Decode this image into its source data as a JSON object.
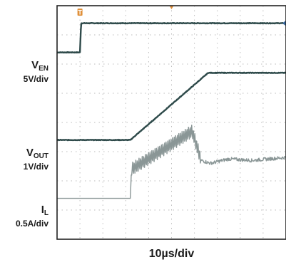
{
  "chart_data": {
    "type": "line",
    "title": "",
    "xlabel": "10µs/div",
    "grid": true,
    "x_divisions": 10,
    "y_divisions": 8,
    "colors": {
      "trace": "#2e4a4a",
      "current_trace": "#8a9696",
      "grid": "#bdbdbd",
      "marker": "#e0903a"
    },
    "channels": [
      {
        "id": "en",
        "label": "V",
        "sub": "EN",
        "scale": "5V/div",
        "zero_div": 1.6,
        "color": "#2e4a4a",
        "points": [
          [
            0,
            0
          ],
          [
            1,
            0
          ],
          [
            1.05,
            1.0
          ],
          [
            10,
            1.0
          ]
        ]
      },
      {
        "id": "vout",
        "label": "V",
        "sub": "OUT",
        "scale": "1V/div",
        "zero_div": 4.6,
        "color": "#2e4a4a",
        "points": [
          [
            0,
            0
          ],
          [
            3.2,
            0
          ],
          [
            6.6,
            2.3
          ],
          [
            10,
            2.3
          ]
        ]
      },
      {
        "id": "il",
        "label": "I",
        "sub": "L",
        "scale": "0.5A/div",
        "zero_div": 6.6,
        "color": "#8a9696",
        "points": [
          [
            0,
            0
          ],
          [
            3.2,
            0
          ],
          [
            3.25,
            1.0
          ],
          [
            4.5,
            1.6
          ],
          [
            5.9,
            2.3
          ],
          [
            6.3,
            1.3
          ],
          [
            6.7,
            1.2
          ],
          [
            7.5,
            1.35
          ],
          [
            8.5,
            1.3
          ],
          [
            10,
            1.4
          ]
        ]
      }
    ],
    "markers": [
      {
        "name": "trigger-marker",
        "text": "T",
        "x_div": 1.0
      },
      {
        "name": "time-marker",
        "text": "",
        "x_div": 5.0
      }
    ]
  }
}
